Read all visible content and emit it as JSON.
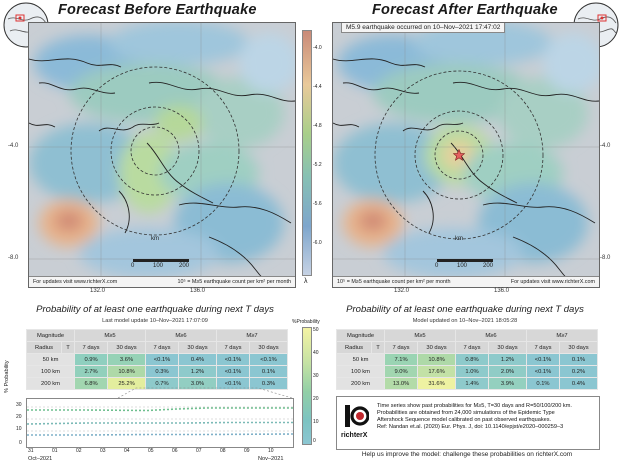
{
  "left_panel": {
    "title": "Forecast Before Earthquake",
    "lat_ticks": [
      "-4.0",
      "-8.0"
    ],
    "lon_ticks": [
      "132.0",
      "136.0"
    ],
    "scale": {
      "unit": "km",
      "ticks": [
        "0",
        "100",
        "200"
      ]
    },
    "footer_left": "For updates visit www.richterX.com",
    "footer_right": "10⁵ = M≥5 earthquake count per km² per month"
  },
  "right_panel": {
    "title": "Forecast After Earthquake",
    "event_banner": "M5.9 earthquake occurred on 10–Nov–2021 17:47:02",
    "lat_ticks": [
      "-4.0",
      "-8.0"
    ],
    "lon_ticks": [
      "132.0",
      "136.0"
    ],
    "scale": {
      "unit": "km",
      "ticks": [
        "0",
        "100",
        "200"
      ]
    },
    "footer_left": "10⁵ = M≥5 earthquake count per km² per month",
    "footer_right": "For updates visit www.richterX.com"
  },
  "rate_colorbar": {
    "ticks": [
      "-4.0",
      "-4.4",
      "-4.8",
      "-5.2",
      "-5.6",
      "-6.0"
    ],
    "unit": "λ",
    "colors": [
      "#c98a78",
      "#e9c99a",
      "#a9cf8a",
      "#86c0b4",
      "#7ea6cc",
      "#c6d2e4"
    ]
  },
  "tables": {
    "left": {
      "title": "Probability of at least one earthquake during next T days",
      "subtitle": "Last model update 10–Nov–2021 17:07:09",
      "magnitudes": [
        "M≥5",
        "M≥6",
        "M≥7"
      ],
      "periods": [
        "7 days",
        "30 days"
      ],
      "rows": [
        {
          "radius": "50 km",
          "cells": [
            "0.9%",
            "3.6%",
            "<0.1%",
            "0.4%",
            "<0.1%",
            "<0.1%"
          ]
        },
        {
          "radius": "100 km",
          "cells": [
            "2.7%",
            "10.8%",
            "0.3%",
            "1.2%",
            "<0.1%",
            "0.1%"
          ]
        },
        {
          "radius": "200 km",
          "cells": [
            "6.8%",
            "25.2%",
            "0.7%",
            "3.0%",
            "<0.1%",
            "0.3%"
          ]
        }
      ]
    },
    "right": {
      "title": "Probability of at least one earthquake during next T days",
      "subtitle": "Model updated on 10–Nov–2021 18:05:28",
      "magnitudes": [
        "M≥5",
        "M≥6",
        "M≥7"
      ],
      "periods": [
        "7 days",
        "30 days"
      ],
      "rows": [
        {
          "radius": "50 km",
          "cells": [
            "7.1%",
            "10.8%",
            "0.8%",
            "1.2%",
            "<0.1%",
            "0.1%"
          ]
        },
        {
          "radius": "100 km",
          "cells": [
            "9.0%",
            "17.6%",
            "1.0%",
            "2.0%",
            "<0.1%",
            "0.2%"
          ]
        },
        {
          "radius": "200 km",
          "cells": [
            "13.0%",
            "31.6%",
            "1.4%",
            "3.9%",
            "0.1%",
            "0.4%"
          ]
        }
      ]
    },
    "magnitude_label": "Magnitude",
    "radius_label": "Radius",
    "t_label": "T"
  },
  "prob_colorbar": {
    "title": "%Probability",
    "ticks": [
      "50",
      "40",
      "30",
      "20",
      "10",
      "0"
    ],
    "colors": [
      "#f4f3a4",
      "#c5e2a4",
      "#92cfa6",
      "#7cc3c2",
      "#8cc6d2"
    ]
  },
  "timeseries": {
    "ylabel": "% Probability",
    "yticks": [
      "30",
      "20",
      "10",
      "0"
    ],
    "xticks": [
      "31",
      "01",
      "02",
      "03",
      "04",
      "05",
      "06",
      "07",
      "08",
      "09",
      "10"
    ],
    "month_start": "Oct–2021",
    "month_end": "Nov–2021"
  },
  "logo_text": "richterX",
  "info_lines": [
    "Time series show past probabilities for M≥5, T=30 days and R=50/100/200 km.",
    "Probabilities are obtained from 24,000 simulations of the Epidemic Type",
    "Aftershock Sequence model calibrated on past observed earthquakes.",
    "Ref: Nandan et.al. (2020) Eur. Phys. J, doi: 10.1140/epjst/e2020–000259–3"
  ],
  "bottom_link": "Help us improve the model: challenge these probabilities on richterX.com"
}
